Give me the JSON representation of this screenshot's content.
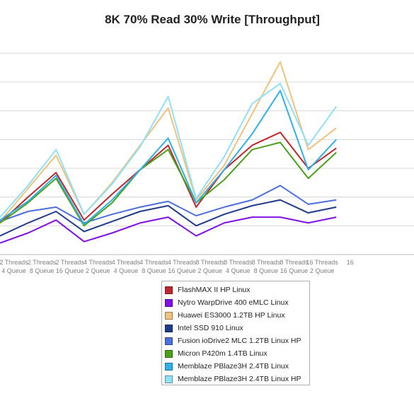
{
  "chart_data": {
    "type": "line",
    "title": "8K 70% Read 30% Write [Throughput]",
    "categories": [
      [
        "2 Threads",
        "4 Queue"
      ],
      [
        "2 Threads",
        "8 Queue"
      ],
      [
        "2 Threads",
        "16 Queue"
      ],
      [
        "4 Threads",
        "2 Queue"
      ],
      [
        "4 Threads",
        "4 Queue"
      ],
      [
        "4 Threads",
        "8 Queue"
      ],
      [
        "4 Threads",
        "16 Queue"
      ],
      [
        "8 Threads",
        "2 Queue"
      ],
      [
        "8 Threads",
        "4 Queue"
      ],
      [
        "8 Threads",
        "8 Queue"
      ],
      [
        "8 Threads",
        "16 Queue"
      ],
      [
        "16 Threads",
        "2 Queue"
      ],
      [
        "16",
        ""
      ]
    ],
    "ylim": [
      0,
      15
    ],
    "grid": true,
    "legend_position": "bottom-center",
    "series": [
      {
        "name": "FlashMAX II HP Linux",
        "color": "#c0272d",
        "values": [
          2.2,
          4.0,
          5.7,
          2.4,
          4.2,
          5.9,
          7.6,
          3.3,
          5.9,
          7.6,
          8.5,
          6.0,
          7.4
        ]
      },
      {
        "name": "Nytro WarpDrive 400 eMLC Linux",
        "color": "#7f10e8",
        "values": [
          0.8,
          1.5,
          2.4,
          0.9,
          1.5,
          2.2,
          2.6,
          1.3,
          2.2,
          2.6,
          2.6,
          2.2,
          2.6
        ]
      },
      {
        "name": "Huawei ES3000 1.2TB HP Linux",
        "color": "#f0c27b",
        "values": [
          2.3,
          4.6,
          6.9,
          2.8,
          5.0,
          7.6,
          10.2,
          3.8,
          6.2,
          9.8,
          13.4,
          7.3,
          8.8
        ]
      },
      {
        "name": "Intel SSD 910 Linux",
        "color": "#1e3c8c",
        "values": [
          1.3,
          2.2,
          3.0,
          1.6,
          2.3,
          3.0,
          3.4,
          2.0,
          2.8,
          3.4,
          3.8,
          2.9,
          3.3
        ]
      },
      {
        "name": "Fusion ioDrive2 MLC 1.2TB Linux HP",
        "color": "#4b6fe0",
        "values": [
          2.3,
          3.0,
          3.3,
          2.2,
          2.8,
          3.3,
          3.7,
          2.7,
          3.3,
          3.8,
          4.8,
          3.5,
          3.8
        ]
      },
      {
        "name": "Micron P420m 1.4TB Linux",
        "color": "#49a118",
        "values": [
          2.2,
          3.6,
          5.3,
          2.0,
          3.6,
          5.9,
          7.3,
          3.6,
          5.2,
          7.3,
          7.8,
          5.3,
          7.1
        ]
      },
      {
        "name": "Memblaze PBlaze3H 2.4TB Linux",
        "color": "#2fb1e8",
        "values": [
          2.4,
          3.7,
          5.5,
          2.1,
          3.8,
          5.9,
          8.1,
          3.6,
          5.9,
          8.4,
          11.4,
          5.9,
          8.0
        ]
      },
      {
        "name": "Memblaze PBlaze3H 2.4TB Linux HP",
        "color": "#8fe0f8",
        "values": [
          2.6,
          4.8,
          7.3,
          2.8,
          4.9,
          7.5,
          11.0,
          3.9,
          6.8,
          10.5,
          11.9,
          7.6,
          10.3
        ]
      }
    ]
  }
}
